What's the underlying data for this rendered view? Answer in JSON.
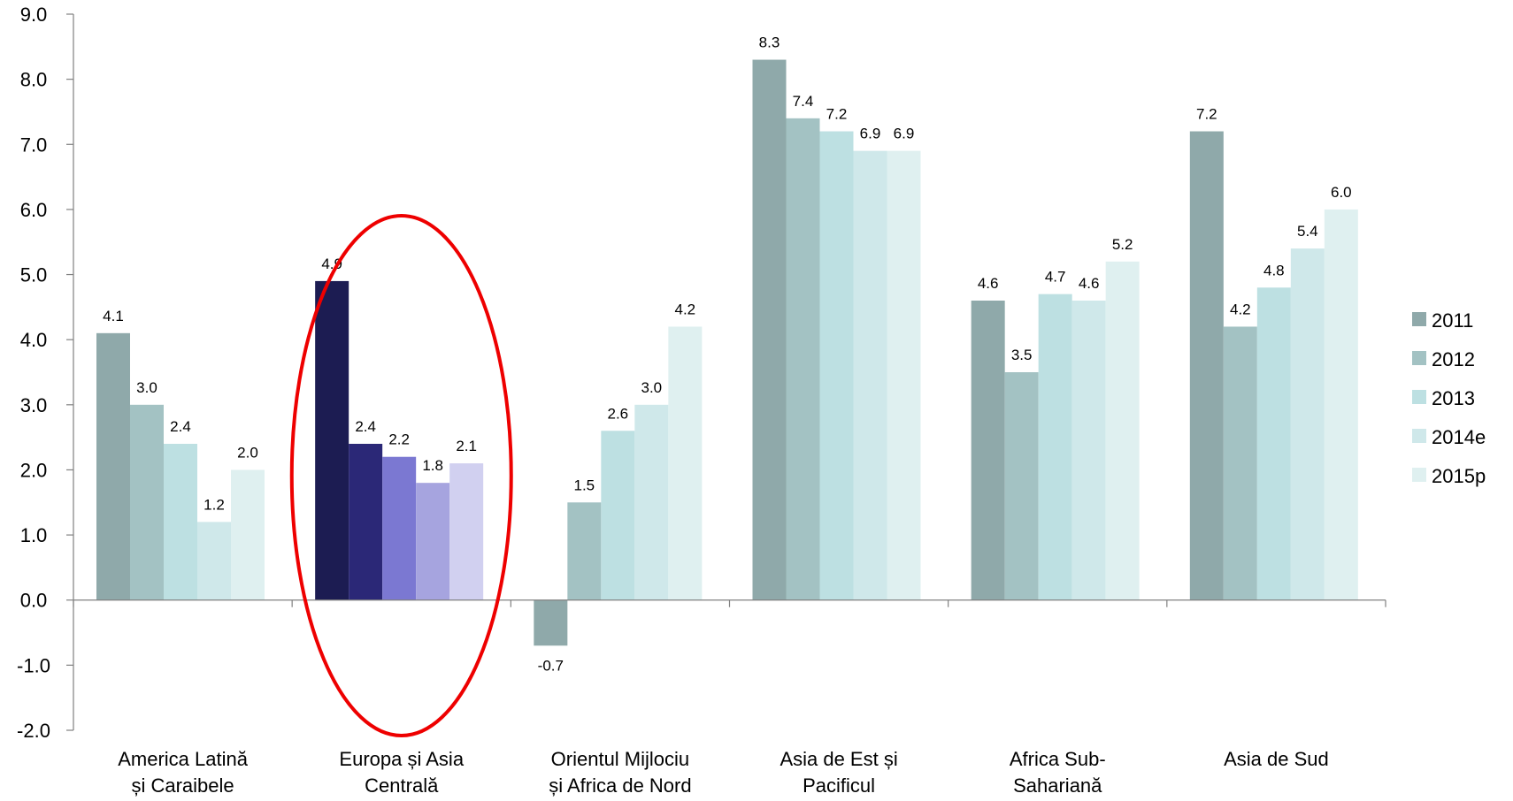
{
  "chart_data": {
    "type": "bar",
    "categories": [
      [
        "America Latină",
        "și Caraibele"
      ],
      [
        "Europa și Asia",
        "Centrală"
      ],
      [
        "Orientul Mijlociu",
        "și Africa de Nord"
      ],
      [
        "Asia de Est și",
        "Pacificul"
      ],
      [
        "Africa Sub-",
        "Sahariană"
      ],
      [
        "Asia de Sud"
      ]
    ],
    "series": [
      {
        "name": "2011",
        "values": [
          4.1,
          4.9,
          -0.7,
          8.3,
          4.6,
          7.2
        ]
      },
      {
        "name": "2012",
        "values": [
          3.0,
          2.4,
          1.5,
          7.4,
          3.5,
          4.2
        ]
      },
      {
        "name": "2013",
        "values": [
          2.4,
          2.2,
          2.6,
          7.2,
          4.7,
          4.8
        ]
      },
      {
        "name": "2014e",
        "values": [
          1.2,
          1.8,
          3.0,
          6.9,
          4.6,
          5.4
        ]
      },
      {
        "name": "2015p",
        "values": [
          2.0,
          2.1,
          4.2,
          6.9,
          5.2,
          6.0
        ]
      }
    ],
    "data_labels": [
      [
        "4.1",
        "4.9",
        "-0.7",
        "8.3",
        "4.6",
        "7.2"
      ],
      [
        "3.0",
        "2.4",
        "1.5",
        "7.4",
        "3.5",
        "4.2"
      ],
      [
        "2.4",
        "2.2",
        "2.6",
        "7.2",
        "4.7",
        "4.8"
      ],
      [
        "1.2",
        "1.8",
        "3.0",
        "6.9",
        "4.6",
        "5.4"
      ],
      [
        "2.0",
        "2.1",
        "4.2",
        "6.9",
        "5.2",
        "6.0"
      ]
    ],
    "ylim": [
      -2.0,
      9.0
    ],
    "yticks": [
      "9.0",
      "8.0",
      "7.0",
      "6.0",
      "5.0",
      "4.0",
      "3.0",
      "2.0",
      "1.0",
      "0.0",
      "-1.0",
      "-2.0"
    ],
    "ytick_values": [
      9,
      8,
      7,
      6,
      5,
      4,
      3,
      2,
      1,
      0,
      -1,
      -2
    ],
    "grid": false,
    "legend_position": "right",
    "colors": [
      "#8fa9aa",
      "#a3c2c3",
      "#bde0e2",
      "#cfe8ea",
      "#dff0f0"
    ],
    "highlight_category": 1,
    "highlight_colors": [
      "#1c1c52",
      "#2b2877",
      "#7b78d2",
      "#a6a4df",
      "#d1d0f0"
    ],
    "annotation": {
      "type": "ellipse",
      "target_category": 1,
      "color": "#ee0000"
    },
    "first_category_label_color": "#1f3864"
  }
}
